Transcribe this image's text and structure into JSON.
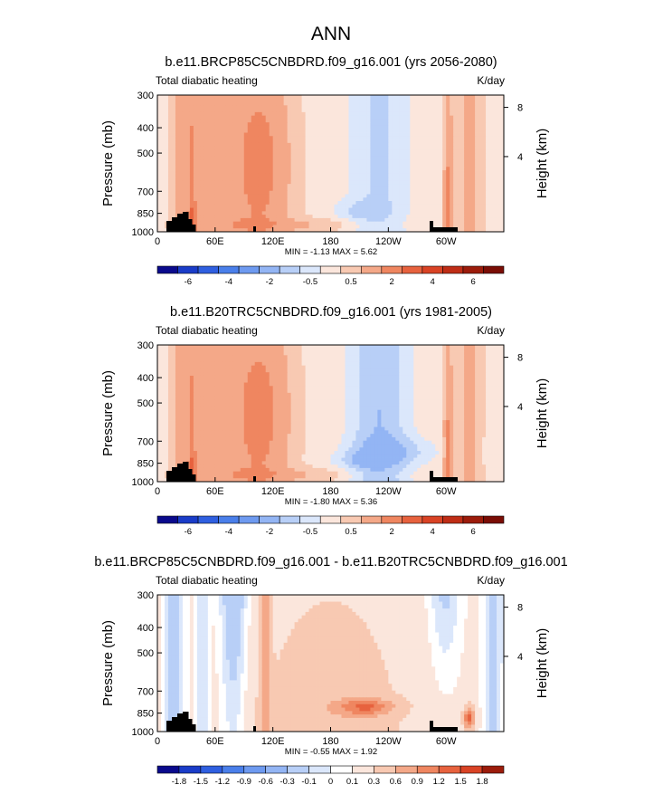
{
  "figure_title": "ANN",
  "chart_data": [
    {
      "type": "heatmap",
      "title": "b.e11.BRCP85C5CNBDRD.f09_g16.001 (yrs 2056-2080)",
      "left_label": "Total diabatic heating",
      "right_label": "K/day",
      "ylabel": "Pressure (mb)",
      "y2label": "Height (km)",
      "yticks": [
        "300",
        "400",
        "500",
        "700",
        "850",
        "1000"
      ],
      "y2ticks": [
        "8",
        "4"
      ],
      "xticks": [
        "0",
        "60E",
        "120E",
        "180",
        "120W",
        "60W"
      ],
      "stats": "MIN = -1.13  MAX =  5.62",
      "colorbar_labels": [
        "-6",
        "-4",
        "-2",
        "-0.5",
        "0.5",
        "2",
        "4",
        "6"
      ],
      "colorbar_colors": [
        "#0a0a8c",
        "#1a3cc8",
        "#2f5fe0",
        "#4a7fea",
        "#6e9af0",
        "#93b5f4",
        "#b8cff7",
        "#dbe7fb",
        "#fbe6dc",
        "#f8c9b2",
        "#f4a888",
        "#ef8660",
        "#e7623e",
        "#d94325",
        "#bf2d16",
        "#9c1c0b",
        "#7a0d05"
      ],
      "min": -1.13,
      "max": 5.62
    },
    {
      "type": "heatmap",
      "title": "b.e11.B20TRC5CNBDRD.f09_g16.001 (yrs 1981-2005)",
      "left_label": "Total diabatic heating",
      "right_label": "K/day",
      "ylabel": "Pressure (mb)",
      "y2label": "Height (km)",
      "yticks": [
        "300",
        "400",
        "500",
        "700",
        "850",
        "1000"
      ],
      "y2ticks": [
        "8",
        "4"
      ],
      "xticks": [
        "0",
        "60E",
        "120E",
        "180",
        "120W",
        "60W"
      ],
      "stats": "MIN = -1.80  MAX =  5.36",
      "colorbar_labels": [
        "-6",
        "-4",
        "-2",
        "-0.5",
        "0.5",
        "2",
        "4",
        "6"
      ],
      "colorbar_colors": [
        "#0a0a8c",
        "#1a3cc8",
        "#2f5fe0",
        "#4a7fea",
        "#6e9af0",
        "#93b5f4",
        "#b8cff7",
        "#dbe7fb",
        "#fbe6dc",
        "#f8c9b2",
        "#f4a888",
        "#ef8660",
        "#e7623e",
        "#d94325",
        "#bf2d16",
        "#9c1c0b",
        "#7a0d05"
      ],
      "min": -1.8,
      "max": 5.36
    },
    {
      "type": "heatmap",
      "title": "b.e11.BRCP85C5CNBDRD.f09_g16.001 - b.e11.B20TRC5CNBDRD.f09_g16.001",
      "left_label": "Total diabatic heating",
      "right_label": "K/day",
      "ylabel": "Pressure (mb)",
      "y2label": "Height (km)",
      "yticks": [
        "300",
        "400",
        "500",
        "700",
        "850",
        "1000"
      ],
      "y2ticks": [
        "8",
        "4"
      ],
      "xticks": [
        "0",
        "60E",
        "120E",
        "180",
        "120W",
        "60W"
      ],
      "stats": "MIN = -0.55  MAX =  1.92",
      "colorbar_labels": [
        "-1.8",
        "-1.5",
        "-1.2",
        "-0.9",
        "-0.6",
        "-0.3",
        "-0.1",
        "0",
        "0.1",
        "0.3",
        "0.6",
        "0.9",
        "1.2",
        "1.5",
        "1.8"
      ],
      "colorbar_colors": [
        "#0a0a8c",
        "#1a3cc8",
        "#2f5fe0",
        "#4a7fea",
        "#6e9af0",
        "#93b5f4",
        "#b8cff7",
        "#dbe7fb",
        "#ffffff",
        "#fbe6dc",
        "#f8c9b2",
        "#f4a888",
        "#ef8660",
        "#e7623e",
        "#d94325",
        "#9c1c0b"
      ],
      "min": -0.55,
      "max": 1.92
    }
  ]
}
